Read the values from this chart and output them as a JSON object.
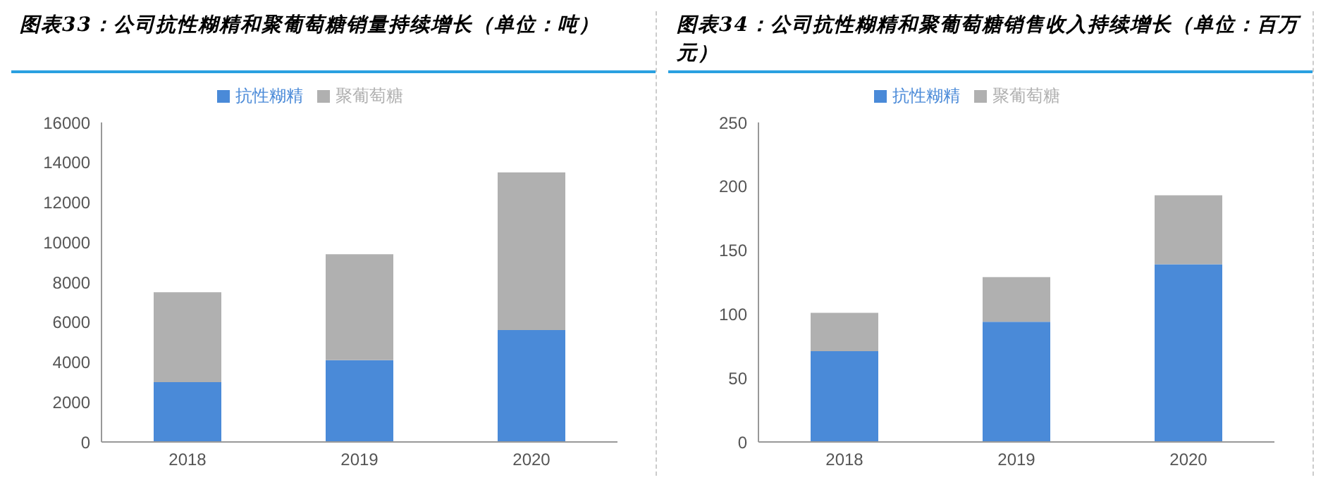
{
  "chart_data": [
    {
      "type": "bar",
      "title": "图表33：公司抗性糊精和聚葡萄糖销量持续增长（单位：吨）",
      "categories": [
        "2018",
        "2019",
        "2020"
      ],
      "stacked": true,
      "legend": "top",
      "grid": false,
      "ylim": [
        0,
        16000
      ],
      "yticks": [
        0,
        2000,
        4000,
        6000,
        8000,
        10000,
        12000,
        14000,
        16000
      ],
      "series": [
        {
          "name": "抗性糊精",
          "color": "#4a8ad8",
          "values": [
            3000,
            4100,
            5600
          ]
        },
        {
          "name": "聚葡萄糖",
          "color": "#b0b0b0",
          "values": [
            4500,
            5300,
            7900
          ]
        }
      ]
    },
    {
      "type": "bar",
      "title": "图表34：公司抗性糊精和聚葡萄糖销售收入持续增长（单位：百万元）",
      "categories": [
        "2018",
        "2019",
        "2020"
      ],
      "stacked": true,
      "legend": "top",
      "grid": false,
      "ylim": [
        0,
        250
      ],
      "yticks": [
        0,
        50,
        100,
        150,
        200,
        250
      ],
      "series": [
        {
          "name": "抗性糊精",
          "color": "#4a8ad8",
          "values": [
            71,
            94,
            139
          ]
        },
        {
          "name": "聚葡萄糖",
          "color": "#b0b0b0",
          "values": [
            30,
            35,
            54
          ]
        }
      ]
    }
  ]
}
